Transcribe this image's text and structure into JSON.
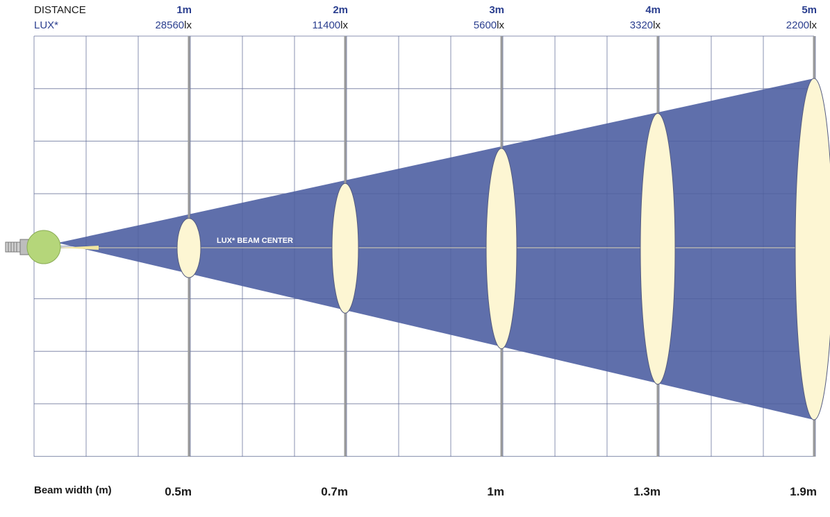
{
  "header": {
    "distance_label": "DISTANCE",
    "lux_label": "LUX*"
  },
  "center_label": "LUX* BEAM CENTER",
  "beam_width_label": "Beam width (m)",
  "lux_unit": "lx",
  "points": [
    {
      "distance": "1m",
      "lux": "28560",
      "beam_width": "0.5m"
    },
    {
      "distance": "2m",
      "lux": "11400",
      "beam_width": "0.7m"
    },
    {
      "distance": "3m",
      "lux": "5600",
      "beam_width": "1m"
    },
    {
      "distance": "4m",
      "lux": "3320",
      "beam_width": "1.3m"
    },
    {
      "distance": "5m",
      "lux": "2200",
      "beam_width": "1.9m"
    }
  ],
  "colors": {
    "beam": "#5a6aa8",
    "ellipse": "#fdf6d3",
    "lamp": "#b5d67a",
    "text_blue": "#2b3f8f",
    "grid": "#c8c8c8",
    "major_line": "#9a9a9a"
  },
  "icons": [
    "lamp-icon"
  ]
}
